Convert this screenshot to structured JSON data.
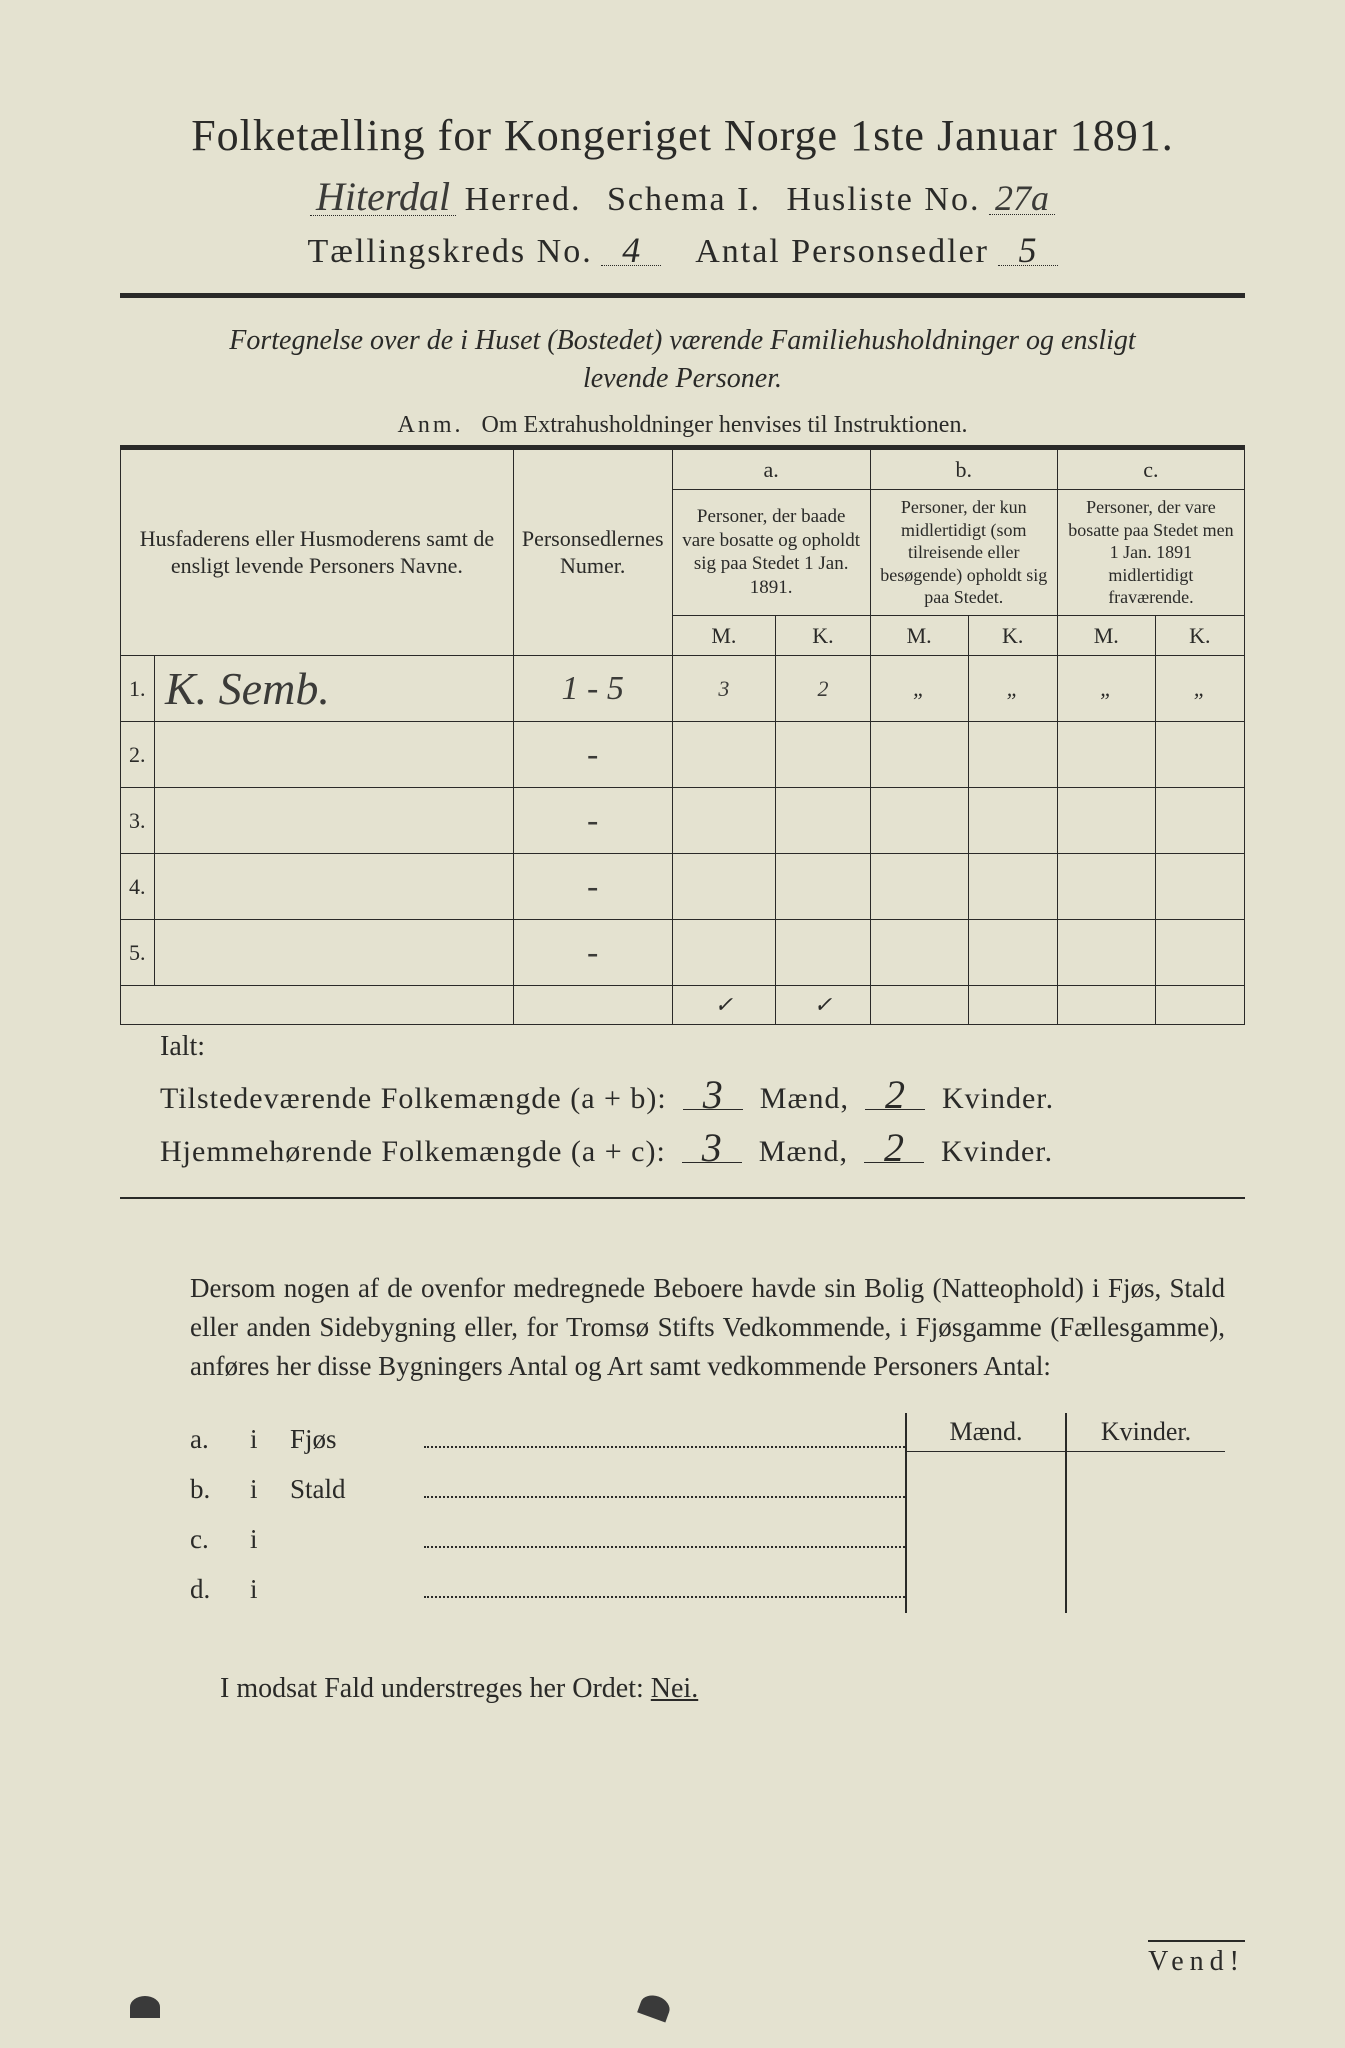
{
  "colors": {
    "paper": "#e4e2d0",
    "ink": "#2a2a28",
    "background": "#3a3a3a",
    "handwriting": "#3b3b38"
  },
  "typography": {
    "title_fontsize_pt": 33,
    "body_fontsize_pt": 20,
    "handwriting_font": "cursive",
    "print_font": "serif"
  },
  "header": {
    "title": "Folketælling for Kongeriget Norge 1ste Januar 1891.",
    "herred_value": "Hiterdal",
    "herred_label": "Herred.",
    "schema_label": "Schema I.",
    "husliste_label": "Husliste No.",
    "husliste_value": "27a",
    "kreds_label": "Tællingskreds No.",
    "kreds_value": "4",
    "antal_label": "Antal Personsedler",
    "antal_value": "5"
  },
  "subtitle": {
    "line1": "Fortegnelse over de i Huset (Bostedet) værende Familiehusholdninger og ensligt",
    "line2": "levende Personer.",
    "anm_label": "Anm.",
    "anm_text": "Om Extrahusholdninger henvises til Instruktionen."
  },
  "table": {
    "col1_header": "Husfaderens eller Husmoderens samt de ensligt levende Personers Navne.",
    "col2_header": "Personsedlernes Numer.",
    "col_a_label": "a.",
    "col_a_text": "Personer, der baade vare bosatte og opholdt sig paa Stedet 1 Jan. 1891.",
    "col_b_label": "b.",
    "col_b_text": "Personer, der kun midlertidigt (som tilreisende eller besøgende) opholdt sig paa Stedet.",
    "col_c_label": "c.",
    "col_c_text": "Personer, der vare bosatte paa Stedet men 1 Jan. 1891 midlertidigt fraværende.",
    "m_label": "M.",
    "k_label": "K.",
    "rows": [
      {
        "num": "1.",
        "name": "K. Semb.",
        "sedler": "1 - 5",
        "a_m": "3",
        "a_k": "2",
        "b_m": "„",
        "b_k": "„",
        "c_m": "„",
        "c_k": "„"
      },
      {
        "num": "2.",
        "name": "",
        "sedler": "-",
        "a_m": "",
        "a_k": "",
        "b_m": "",
        "b_k": "",
        "c_m": "",
        "c_k": ""
      },
      {
        "num": "3.",
        "name": "",
        "sedler": "-",
        "a_m": "",
        "a_k": "",
        "b_m": "",
        "b_k": "",
        "c_m": "",
        "c_k": ""
      },
      {
        "num": "4.",
        "name": "",
        "sedler": "-",
        "a_m": "",
        "a_k": "",
        "b_m": "",
        "b_k": "",
        "c_m": "",
        "c_k": ""
      },
      {
        "num": "5.",
        "name": "",
        "sedler": "-",
        "a_m": "",
        "a_k": "",
        "b_m": "",
        "b_k": "",
        "c_m": "",
        "c_k": ""
      }
    ],
    "ialt_label": "Ialt:",
    "check1": "✓",
    "check2": "✓"
  },
  "totals": {
    "line1_label": "Tilstedeværende Folkemængde (a + b):",
    "line2_label": "Hjemmehørende Folkemængde (a + c):",
    "maend_label": "Mænd,",
    "kvinder_label": "Kvinder.",
    "line1_m": "3",
    "line1_k": "2",
    "line2_m": "3",
    "line2_k": "2"
  },
  "paragraph": {
    "text": "Dersom nogen af de ovenfor medregnede Beboere havde sin Bolig (Natteophold) i Fjøs, Stald eller anden Sidebygning eller, for Tromsø Stifts Vedkommende, i Fjøsgamme (Fællesgamme), anføres her disse Bygningers Antal og Art samt vedkommende Personers Antal:"
  },
  "lower": {
    "maend_header": "Mænd.",
    "kvinder_header": "Kvinder.",
    "rows": [
      {
        "letter": "a.",
        "i": "i",
        "type": "Fjøs"
      },
      {
        "letter": "b.",
        "i": "i",
        "type": "Stald"
      },
      {
        "letter": "c.",
        "i": "i",
        "type": ""
      },
      {
        "letter": "d.",
        "i": "i",
        "type": ""
      }
    ]
  },
  "footer": {
    "modsat": "I modsat Fald understreges her Ordet:",
    "nei": "Nei.",
    "vend": "Vend!"
  }
}
